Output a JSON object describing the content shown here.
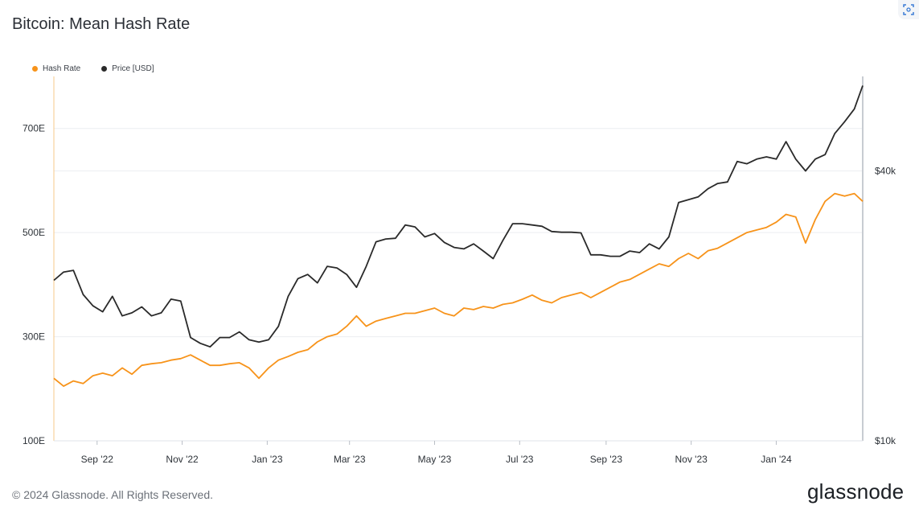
{
  "header": {
    "title": "Bitcoin: Mean Hash Rate"
  },
  "toolbar": {
    "corner_icon": "scan-icon"
  },
  "legend": {
    "hash_label": "Hash Rate",
    "price_label": "Price [USD]",
    "hash_color": "#f7931a",
    "price_color": "#2a2a2a"
  },
  "footer": {
    "copyright": "© 2024 Glassnode. All Rights Reserved.",
    "brand": "glassnode"
  },
  "chart_data": {
    "type": "line",
    "x_axis": {
      "type": "date",
      "range": [
        "2022-08-01",
        "2024-03-03"
      ],
      "ticks": [
        {
          "label": "Sep '22",
          "date": "2022-09-01"
        },
        {
          "label": "Nov '22",
          "date": "2022-11-01"
        },
        {
          "label": "Jan '23",
          "date": "2023-01-01"
        },
        {
          "label": "Mar '23",
          "date": "2023-03-01"
        },
        {
          "label": "May '23",
          "date": "2023-05-01"
        },
        {
          "label": "Jul '23",
          "date": "2023-07-01"
        },
        {
          "label": "Sep '23",
          "date": "2023-09-01"
        },
        {
          "label": "Nov '23",
          "date": "2023-11-01"
        },
        {
          "label": "Jan '24",
          "date": "2024-01-01"
        }
      ]
    },
    "y_left": {
      "label": "",
      "ylim": [
        100,
        800
      ],
      "ticks": [
        {
          "label": "100E",
          "value": 100
        },
        {
          "label": "300E",
          "value": 300
        },
        {
          "label": "500E",
          "value": 500
        },
        {
          "label": "700E",
          "value": 700
        }
      ]
    },
    "y_right": {
      "label": "",
      "scale": "log",
      "ylim": [
        10000,
        65000
      ],
      "ticks": [
        {
          "label": "$10k",
          "value": 10000
        },
        {
          "label": "$40k",
          "value": 40000
        }
      ]
    },
    "grid": "horizontal",
    "series": [
      {
        "name": "Hash Rate",
        "axis": "left",
        "color": "#f7931a",
        "points": [
          [
            "2022-08-01",
            220
          ],
          [
            "2022-08-08",
            205
          ],
          [
            "2022-08-15",
            215
          ],
          [
            "2022-08-22",
            210
          ],
          [
            "2022-08-29",
            225
          ],
          [
            "2022-09-05",
            230
          ],
          [
            "2022-09-12",
            225
          ],
          [
            "2022-09-19",
            240
          ],
          [
            "2022-09-26",
            228
          ],
          [
            "2022-10-03",
            245
          ],
          [
            "2022-10-10",
            248
          ],
          [
            "2022-10-17",
            250
          ],
          [
            "2022-10-24",
            255
          ],
          [
            "2022-10-31",
            258
          ],
          [
            "2022-11-07",
            265
          ],
          [
            "2022-11-14",
            255
          ],
          [
            "2022-11-21",
            245
          ],
          [
            "2022-11-28",
            245
          ],
          [
            "2022-12-05",
            248
          ],
          [
            "2022-12-12",
            250
          ],
          [
            "2022-12-19",
            240
          ],
          [
            "2022-12-26",
            220
          ],
          [
            "2023-01-02",
            240
          ],
          [
            "2023-01-09",
            255
          ],
          [
            "2023-01-16",
            262
          ],
          [
            "2023-01-23",
            270
          ],
          [
            "2023-01-30",
            275
          ],
          [
            "2023-02-06",
            290
          ],
          [
            "2023-02-13",
            300
          ],
          [
            "2023-02-20",
            305
          ],
          [
            "2023-02-27",
            320
          ],
          [
            "2023-03-06",
            340
          ],
          [
            "2023-03-13",
            320
          ],
          [
            "2023-03-20",
            330
          ],
          [
            "2023-03-27",
            335
          ],
          [
            "2023-04-03",
            340
          ],
          [
            "2023-04-10",
            345
          ],
          [
            "2023-04-17",
            345
          ],
          [
            "2023-04-24",
            350
          ],
          [
            "2023-05-01",
            355
          ],
          [
            "2023-05-08",
            345
          ],
          [
            "2023-05-15",
            340
          ],
          [
            "2023-05-22",
            355
          ],
          [
            "2023-05-29",
            352
          ],
          [
            "2023-06-05",
            358
          ],
          [
            "2023-06-12",
            355
          ],
          [
            "2023-06-19",
            362
          ],
          [
            "2023-06-26",
            365
          ],
          [
            "2023-07-03",
            372
          ],
          [
            "2023-07-10",
            380
          ],
          [
            "2023-07-17",
            370
          ],
          [
            "2023-07-24",
            365
          ],
          [
            "2023-07-31",
            375
          ],
          [
            "2023-08-07",
            380
          ],
          [
            "2023-08-14",
            385
          ],
          [
            "2023-08-21",
            375
          ],
          [
            "2023-08-28",
            385
          ],
          [
            "2023-09-04",
            395
          ],
          [
            "2023-09-11",
            405
          ],
          [
            "2023-09-18",
            410
          ],
          [
            "2023-09-25",
            420
          ],
          [
            "2023-10-02",
            430
          ],
          [
            "2023-10-09",
            440
          ],
          [
            "2023-10-16",
            435
          ],
          [
            "2023-10-23",
            450
          ],
          [
            "2023-10-30",
            460
          ],
          [
            "2023-11-06",
            450
          ],
          [
            "2023-11-13",
            465
          ],
          [
            "2023-11-20",
            470
          ],
          [
            "2023-11-27",
            480
          ],
          [
            "2023-12-04",
            490
          ],
          [
            "2023-12-11",
            500
          ],
          [
            "2023-12-18",
            505
          ],
          [
            "2023-12-25",
            510
          ],
          [
            "2024-01-01",
            520
          ],
          [
            "2024-01-08",
            535
          ],
          [
            "2024-01-15",
            530
          ],
          [
            "2024-01-22",
            480
          ],
          [
            "2024-01-29",
            525
          ],
          [
            "2024-02-05",
            560
          ],
          [
            "2024-02-12",
            575
          ],
          [
            "2024-02-19",
            570
          ],
          [
            "2024-02-26",
            575
          ],
          [
            "2024-03-03",
            560
          ]
        ]
      },
      {
        "name": "Price [USD]",
        "axis": "right",
        "color": "#2a2a2a",
        "points": [
          [
            "2022-08-01",
            22800
          ],
          [
            "2022-08-08",
            23800
          ],
          [
            "2022-08-15",
            24000
          ],
          [
            "2022-08-22",
            21200
          ],
          [
            "2022-08-29",
            20000
          ],
          [
            "2022-09-05",
            19400
          ],
          [
            "2022-09-12",
            21000
          ],
          [
            "2022-09-19",
            19000
          ],
          [
            "2022-09-26",
            19300
          ],
          [
            "2022-10-03",
            19900
          ],
          [
            "2022-10-10",
            19000
          ],
          [
            "2022-10-17",
            19300
          ],
          [
            "2022-10-24",
            20700
          ],
          [
            "2022-10-31",
            20500
          ],
          [
            "2022-11-07",
            17000
          ],
          [
            "2022-11-14",
            16500
          ],
          [
            "2022-11-21",
            16200
          ],
          [
            "2022-11-28",
            17000
          ],
          [
            "2022-12-05",
            17000
          ],
          [
            "2022-12-12",
            17500
          ],
          [
            "2022-12-19",
            16800
          ],
          [
            "2022-12-26",
            16600
          ],
          [
            "2023-01-02",
            16800
          ],
          [
            "2023-01-09",
            18000
          ],
          [
            "2023-01-16",
            21000
          ],
          [
            "2023-01-23",
            23000
          ],
          [
            "2023-01-30",
            23500
          ],
          [
            "2023-02-06",
            22500
          ],
          [
            "2023-02-13",
            24500
          ],
          [
            "2023-02-20",
            24300
          ],
          [
            "2023-02-27",
            23500
          ],
          [
            "2023-03-06",
            22000
          ],
          [
            "2023-03-13",
            24500
          ],
          [
            "2023-03-20",
            27800
          ],
          [
            "2023-03-27",
            28200
          ],
          [
            "2023-04-03",
            28300
          ],
          [
            "2023-04-10",
            30300
          ],
          [
            "2023-04-17",
            30000
          ],
          [
            "2023-04-24",
            28500
          ],
          [
            "2023-05-01",
            29000
          ],
          [
            "2023-05-08",
            27700
          ],
          [
            "2023-05-15",
            27000
          ],
          [
            "2023-05-22",
            26800
          ],
          [
            "2023-05-29",
            27500
          ],
          [
            "2023-06-05",
            26500
          ],
          [
            "2023-06-12",
            25500
          ],
          [
            "2023-06-19",
            28000
          ],
          [
            "2023-06-26",
            30500
          ],
          [
            "2023-07-03",
            30500
          ],
          [
            "2023-07-10",
            30300
          ],
          [
            "2023-07-17",
            30100
          ],
          [
            "2023-07-24",
            29300
          ],
          [
            "2023-07-31",
            29200
          ],
          [
            "2023-08-07",
            29200
          ],
          [
            "2023-08-14",
            29100
          ],
          [
            "2023-08-21",
            26000
          ],
          [
            "2023-08-28",
            26000
          ],
          [
            "2023-09-04",
            25800
          ],
          [
            "2023-09-11",
            25800
          ],
          [
            "2023-09-18",
            26500
          ],
          [
            "2023-09-25",
            26300
          ],
          [
            "2023-10-02",
            27500
          ],
          [
            "2023-10-09",
            26800
          ],
          [
            "2023-10-16",
            28500
          ],
          [
            "2023-10-23",
            34000
          ],
          [
            "2023-10-30",
            34500
          ],
          [
            "2023-11-06",
            35000
          ],
          [
            "2023-11-13",
            36500
          ],
          [
            "2023-11-20",
            37500
          ],
          [
            "2023-11-27",
            37800
          ],
          [
            "2023-12-04",
            42000
          ],
          [
            "2023-12-11",
            41500
          ],
          [
            "2023-12-18",
            42500
          ],
          [
            "2023-12-25",
            43000
          ],
          [
            "2024-01-01",
            42500
          ],
          [
            "2024-01-08",
            46500
          ],
          [
            "2024-01-15",
            42500
          ],
          [
            "2024-01-22",
            40000
          ],
          [
            "2024-01-29",
            42500
          ],
          [
            "2024-02-05",
            43500
          ],
          [
            "2024-02-12",
            48500
          ],
          [
            "2024-02-19",
            51500
          ],
          [
            "2024-02-26",
            55000
          ],
          [
            "2024-03-03",
            62000
          ]
        ]
      }
    ]
  }
}
